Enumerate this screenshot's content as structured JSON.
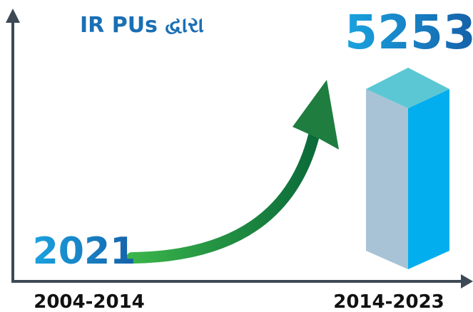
{
  "chart_data": {
    "type": "bar",
    "title": "IR PUs દ્વારા",
    "categories": [
      "2004-2014",
      "2014-2023"
    ],
    "values": [
      2021,
      5253
    ]
  }
}
